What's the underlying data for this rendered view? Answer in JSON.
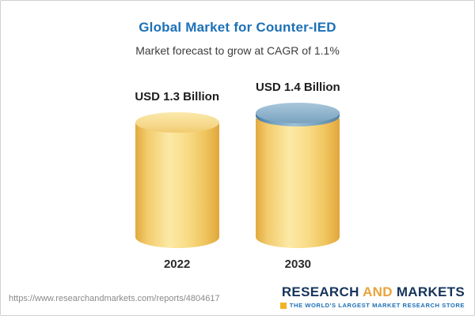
{
  "chart_data": {
    "type": "bar",
    "bar_style": "3d-cylinder",
    "title": "Global Market for Counter-IED",
    "subtitle": "Market forecast to grow at CAGR of 1.1%",
    "categories": [
      "2022",
      "2030"
    ],
    "values": [
      1.3,
      1.4
    ],
    "unit": "USD Billion",
    "value_labels": [
      "USD 1.3 Billion",
      "USD 1.4 Billion"
    ],
    "xlabel": "",
    "ylabel": "",
    "legend": "none",
    "grid": false,
    "colors": {
      "bar_body": "#F5D06F",
      "bar_cap_2030": "#7FA6C4",
      "title": "#1D70B7"
    }
  },
  "footer": {
    "source_url": "https://www.researchandmarkets.com/reports/4804617",
    "logo": {
      "research": "RESEARCH",
      "and": "AND",
      "markets": "MARKETS",
      "tagline": "THE WORLD'S LARGEST MARKET RESEARCH STORE"
    }
  }
}
